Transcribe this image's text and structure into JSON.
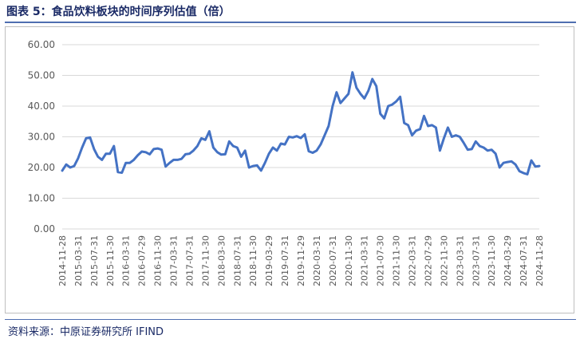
{
  "figure_title": "图表 5：食品饮料板块的时间序列估值（倍）",
  "source": "资料来源：中原证券研究所   IFIND",
  "colors": {
    "line": "#4472C4",
    "grid": "#d9d9d9",
    "axis_text": "#595959"
  },
  "chart_data": {
    "type": "line",
    "title": "",
    "xlabel": "",
    "ylabel": "",
    "ylim": [
      0,
      60
    ],
    "yticks": [
      "0.00",
      "10.00",
      "20.00",
      "30.00",
      "40.00",
      "50.00",
      "60.00"
    ],
    "grid": true,
    "legend": "none",
    "x_tick_labels": [
      "2014-11-28",
      "2015-03-31",
      "2015-07-31",
      "2015-11-30",
      "2016-03-31",
      "2016-07-29",
      "2016-11-30",
      "2017-03-31",
      "2017-07-31",
      "2017-11-30",
      "2018-03-30",
      "2018-07-31",
      "2018-11-30",
      "2019-03-29",
      "2019-07-31",
      "2019-11-29",
      "2020-03-31",
      "2020-07-31",
      "2020-11-30",
      "2021-03-31",
      "2021-07-30",
      "2021-11-30",
      "2022-03-31",
      "2022-07-29",
      "2022-11-30",
      "2023-03-31",
      "2023-07-31",
      "2023-11-30",
      "2024-03-29",
      "2024-07-31",
      "2024-11-28"
    ],
    "series": [
      {
        "values": [
          19.0,
          21.0,
          20.0,
          20.5,
          23.0,
          26.5,
          29.5,
          29.8,
          26.0,
          23.5,
          22.5,
          24.5,
          24.5,
          27.0,
          18.5,
          18.3,
          21.5,
          21.5,
          22.5,
          24.0,
          25.2,
          25.0,
          24.3,
          26.0,
          26.2,
          25.8,
          20.3,
          21.5,
          22.5,
          22.5,
          22.8,
          24.3,
          24.5,
          25.5,
          27.0,
          29.5,
          29.0,
          31.8,
          26.5,
          25.0,
          24.2,
          24.3,
          28.5,
          27.0,
          26.5,
          23.5,
          25.5,
          20.0,
          20.5,
          20.7,
          19.0,
          21.5,
          24.5,
          26.5,
          25.5,
          27.8,
          27.5,
          30.0,
          29.8,
          30.2,
          29.6,
          30.8,
          25.3,
          24.8,
          25.5,
          27.5,
          30.5,
          33.5,
          40.0,
          44.5,
          41.0,
          42.5,
          44.0,
          51.0,
          46.0,
          44.0,
          42.5,
          45.0,
          48.8,
          46.5,
          37.5,
          36.0,
          40.0,
          40.5,
          41.5,
          43.0,
          34.5,
          33.8,
          30.5,
          32.0,
          32.5,
          36.8,
          33.5,
          33.8,
          33.0,
          25.5,
          29.5,
          33.0,
          30.0,
          30.5,
          30.0,
          28.0,
          25.8,
          26.0,
          28.5,
          27.0,
          26.5,
          25.5,
          25.8,
          24.5,
          20.0,
          21.5,
          21.8,
          22.0,
          21.0,
          18.8,
          18.2,
          17.8,
          22.3,
          20.3,
          20.5
        ]
      }
    ]
  }
}
